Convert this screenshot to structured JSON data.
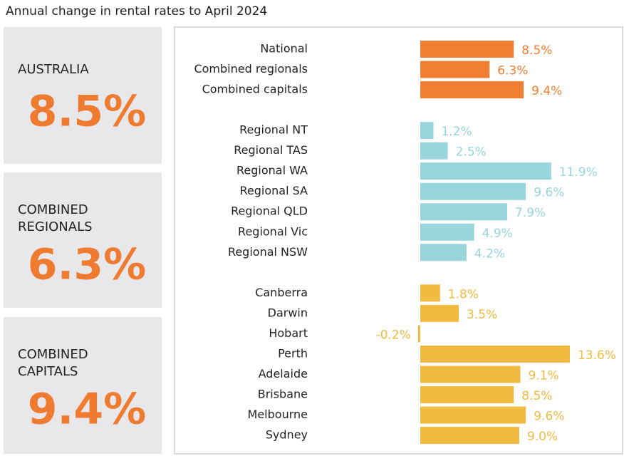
{
  "chart_data": {
    "type": "bar",
    "orientation": "horizontal",
    "title": "Annual change in rental rates to April 2024",
    "categories": [
      "National",
      "Combined regionals",
      "Combined capitals",
      null,
      "Regional NT",
      "Regional TAS",
      "Regional WA",
      "Regional SA",
      "Regional QLD",
      "Regional Vic",
      "Regional NSW",
      null,
      "Canberra",
      "Darwin",
      "Hobart",
      "Perth",
      "Adelaide",
      "Brisbane",
      "Melbourne",
      "Sydney"
    ],
    "series": [
      {
        "color": "#f07f33",
        "values": [
          8.5,
          6.3,
          9.4,
          null,
          null,
          null,
          null,
          null,
          null,
          null,
          null,
          null,
          null,
          null,
          null,
          null,
          null,
          null,
          null,
          null
        ],
        "value_labels": [
          "8.5%",
          "6.3%",
          "9.4%",
          null,
          null,
          null,
          null,
          null,
          null,
          null,
          null,
          null,
          null,
          null,
          null,
          null,
          null,
          null,
          null,
          null
        ]
      },
      {
        "color": "#98d5dc",
        "values": [
          null,
          null,
          null,
          null,
          1.2,
          2.5,
          11.9,
          9.6,
          7.9,
          4.9,
          4.2,
          null,
          null,
          null,
          null,
          null,
          null,
          null,
          null,
          null
        ],
        "value_labels": [
          null,
          null,
          null,
          null,
          "1.2%",
          "2.5%",
          "11.9%",
          "9.6%",
          "7.9%",
          "4.9%",
          "4.2%",
          null,
          null,
          null,
          null,
          null,
          null,
          null,
          null,
          null
        ]
      },
      {
        "color": "#f0bb40",
        "values": [
          null,
          null,
          null,
          null,
          null,
          null,
          null,
          null,
          null,
          null,
          null,
          null,
          1.8,
          3.5,
          -0.2,
          13.6,
          9.1,
          8.5,
          9.6,
          9.0
        ],
        "value_labels": [
          null,
          null,
          null,
          null,
          null,
          null,
          null,
          null,
          null,
          null,
          null,
          null,
          "1.8%",
          "3.5%",
          "-0.2%",
          "13.6%",
          "9.1%",
          "8.5%",
          "9.6%",
          "9.0%"
        ]
      }
    ]
  },
  "cards": [
    {
      "label": [
        "AUSTRALIA"
      ],
      "value": "8.5%"
    },
    {
      "label": [
        "COMBINED",
        "REGIONALS"
      ],
      "value": "6.3%"
    },
    {
      "label": [
        "COMBINED",
        "CAPITALS"
      ],
      "value": "9.4%"
    }
  ]
}
